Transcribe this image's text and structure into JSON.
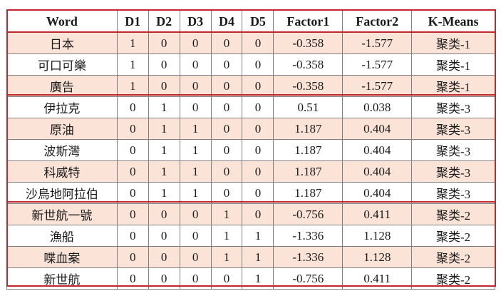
{
  "table": {
    "headers": [
      "Word",
      "D1",
      "D2",
      "D3",
      "D4",
      "D5",
      "Factor1",
      "Factor2",
      "K-Means"
    ],
    "rows": [
      [
        "日本",
        "1",
        "0",
        "0",
        "0",
        "0",
        "-0.358",
        "-1.577",
        "聚类-1"
      ],
      [
        "可口可樂",
        "1",
        "0",
        "0",
        "0",
        "0",
        "-0.358",
        "-1.577",
        "聚类-1"
      ],
      [
        "廣告",
        "1",
        "0",
        "0",
        "0",
        "0",
        "-0.358",
        "-1.577",
        "聚类-1"
      ],
      [
        "伊拉克",
        "0",
        "1",
        "0",
        "0",
        "0",
        "0.51",
        "0.038",
        "聚类-3"
      ],
      [
        "原油",
        "0",
        "1",
        "1",
        "0",
        "0",
        "1.187",
        "0.404",
        "聚类-3"
      ],
      [
        "波斯灣",
        "0",
        "1",
        "1",
        "0",
        "0",
        "1.187",
        "0.404",
        "聚类-3"
      ],
      [
        "科威特",
        "0",
        "1",
        "1",
        "0",
        "0",
        "1.187",
        "0.404",
        "聚类-3"
      ],
      [
        "沙烏地阿拉伯",
        "0",
        "1",
        "1",
        "0",
        "0",
        "1.187",
        "0.404",
        "聚类-3"
      ],
      [
        "新世航一號",
        "0",
        "0",
        "0",
        "1",
        "0",
        "-0.756",
        "0.411",
        "聚类-2"
      ],
      [
        "漁船",
        "0",
        "0",
        "0",
        "1",
        "1",
        "-1.336",
        "1.128",
        "聚类-2"
      ],
      [
        "喋血案",
        "0",
        "0",
        "0",
        "1",
        "1",
        "-1.336",
        "1.128",
        "聚类-2"
      ],
      [
        "新世航",
        "0",
        "0",
        "0",
        "0",
        "1",
        "-0.756",
        "0.411",
        "聚类-2"
      ]
    ]
  },
  "colors": {
    "row_shade": "#fbe3d7",
    "cluster_frame": "#c0272d",
    "grid": "#7f7f7f"
  }
}
